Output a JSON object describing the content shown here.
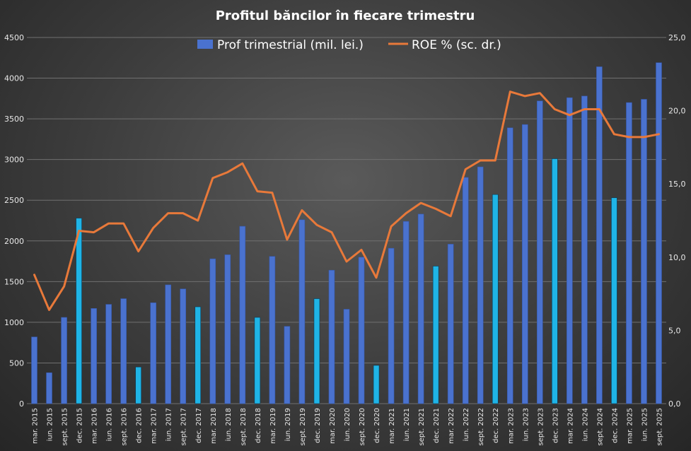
{
  "chart_data": {
    "type": "bar",
    "title": "Profitul băncilor în fiecare trimestru",
    "categories": [
      "mar. 2015",
      "iun. 2015",
      "sept. 2015",
      "dec. 2015",
      "mar. 2016",
      "iun. 2016",
      "sept. 2016",
      "dec. 2016",
      "mar. 2017",
      "iun. 2017",
      "sept. 2017",
      "dec. 2017",
      "mar. 2018",
      "iun. 2018",
      "sept. 2018",
      "dec. 2018",
      "mar. 2019",
      "iun. 2019",
      "sept. 2019",
      "dec. 2019",
      "mar. 2020",
      "iun. 2020",
      "sept. 2020",
      "dec. 2020",
      "mar. 2021",
      "iun. 2021",
      "sept. 2021",
      "dec. 2021",
      "mar. 2022",
      "iun. 2022",
      "sept. 2022",
      "dec. 2022",
      "mar. 2023",
      "iun. 2023",
      "sept. 2023",
      "dec. 2023",
      "mar. 2024",
      "iun. 2024",
      "sept. 2024",
      "dec. 2024",
      "mar. 2025",
      "iun. 2025",
      "sept. 2025"
    ],
    "series": [
      {
        "name": "Prof trimestrial (mil. lei.)",
        "type": "bar",
        "axis": "left",
        "color": "#4a72cf",
        "highlight_color": "#1fb4e6",
        "values": [
          820,
          380,
          1060,
          2280,
          1170,
          1220,
          1290,
          450,
          1240,
          1460,
          1410,
          1190,
          1780,
          1830,
          2180,
          1060,
          1810,
          950,
          2260,
          1290,
          1640,
          1160,
          1800,
          470,
          1910,
          2240,
          2330,
          1690,
          1960,
          2780,
          2910,
          2570,
          3390,
          3430,
          3720,
          3010,
          3760,
          3780,
          4140,
          2530,
          3700,
          3740,
          4190
        ],
        "highlighted_indices": [
          3,
          7,
          11,
          15,
          19,
          23,
          27,
          31,
          35,
          39
        ]
      },
      {
        "name": "ROE % (sc. dr.)",
        "type": "line",
        "axis": "right",
        "color": "#e8793a",
        "values": [
          8.8,
          6.4,
          8.0,
          11.8,
          11.7,
          12.3,
          12.3,
          10.4,
          12.0,
          13.0,
          13.0,
          12.5,
          15.4,
          15.8,
          16.4,
          14.5,
          14.4,
          11.2,
          13.2,
          12.2,
          11.7,
          9.7,
          10.5,
          8.6,
          12.1,
          13.0,
          13.7,
          13.3,
          12.8,
          16.0,
          16.6,
          16.6,
          21.3,
          21.0,
          21.2,
          20.1,
          19.7,
          20.1,
          20.1,
          18.4,
          18.2,
          18.2,
          18.4
        ]
      }
    ],
    "y_left": {
      "min": 0,
      "max": 4500,
      "step": 500,
      "tick_labels": [
        "0",
        "500",
        "1000",
        "1500",
        "2000",
        "2500",
        "3000",
        "3500",
        "4000",
        "4500"
      ]
    },
    "y_right": {
      "min": 0,
      "max": 25,
      "step": 5,
      "tick_labels": [
        "0,0",
        "5,0",
        "10,0",
        "15,0",
        "20,0",
        "25,0"
      ]
    },
    "grid": true,
    "legend_position": "top-center"
  }
}
